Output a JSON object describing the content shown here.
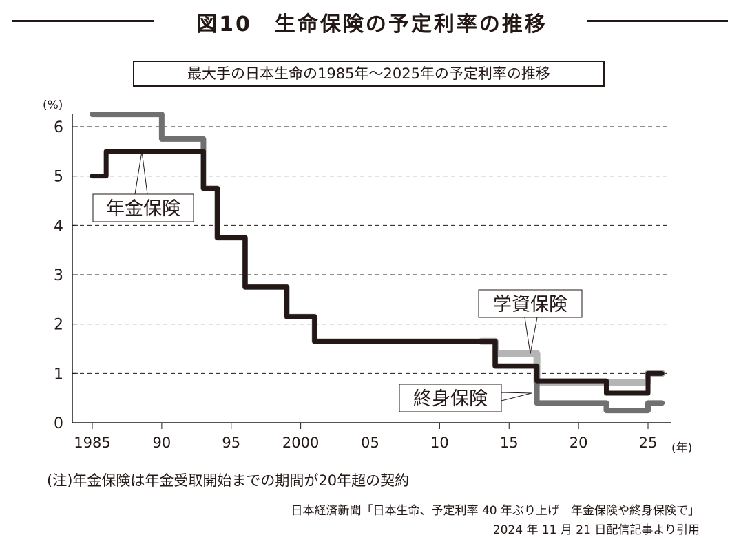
{
  "title": "図10　生命保険の予定利率の推移",
  "chart_data": {
    "type": "line",
    "subtitle": "最大手の日本生命の1985年～2025年の予定利率の推移",
    "ylabel": "(%)",
    "xlabel": "(年)",
    "ylim": [
      0,
      6.5
    ],
    "xlim": [
      1985,
      2026.5
    ],
    "yticks": [
      0,
      1,
      2,
      3,
      4,
      5,
      6
    ],
    "xticks": [
      {
        "v": 1985,
        "label": "1985"
      },
      {
        "v": 1990,
        "label": "90"
      },
      {
        "v": 1995,
        "label": "95"
      },
      {
        "v": 2000,
        "label": "2000"
      },
      {
        "v": 2005,
        "label": "05"
      },
      {
        "v": 2010,
        "label": "10"
      },
      {
        "v": 2015,
        "label": "15"
      },
      {
        "v": 2020,
        "label": "20"
      },
      {
        "v": 2025,
        "label": "25"
      }
    ],
    "grid": "horizontal dashed",
    "step": true,
    "series": [
      {
        "name": "学資保険",
        "color": "#b5b5b5",
        "points": [
          [
            2013,
            1.65
          ],
          [
            2014,
            1.65
          ],
          [
            2014,
            1.4
          ],
          [
            2017,
            1.4
          ],
          [
            2017,
            0.82
          ],
          [
            2025,
            0.82
          ],
          [
            2025,
            1.0
          ],
          [
            2026,
            1.0
          ]
        ]
      },
      {
        "name": "終身保険",
        "color": "#717071",
        "points": [
          [
            1985,
            6.25
          ],
          [
            1990,
            6.25
          ],
          [
            1990,
            5.75
          ],
          [
            1993,
            5.75
          ],
          [
            1993,
            4.75
          ],
          [
            1994,
            4.75
          ],
          [
            1994,
            3.75
          ],
          [
            1996,
            3.75
          ],
          [
            1996,
            2.75
          ],
          [
            1999,
            2.75
          ],
          [
            1999,
            2.15
          ],
          [
            2001,
            2.15
          ],
          [
            2001,
            1.65
          ],
          [
            2014,
            1.65
          ],
          [
            2014,
            1.15
          ],
          [
            2017,
            1.15
          ],
          [
            2017,
            0.4
          ],
          [
            2022,
            0.4
          ],
          [
            2022,
            0.25
          ],
          [
            2025,
            0.25
          ],
          [
            2025,
            0.4
          ],
          [
            2026,
            0.4
          ]
        ]
      },
      {
        "name": "年金保険",
        "color": "#231815",
        "points": [
          [
            1985,
            5.0
          ],
          [
            1986,
            5.0
          ],
          [
            1986,
            5.5
          ],
          [
            1993,
            5.5
          ],
          [
            1993,
            4.75
          ],
          [
            1994,
            4.75
          ],
          [
            1994,
            3.75
          ],
          [
            1996,
            3.75
          ],
          [
            1996,
            2.75
          ],
          [
            1999,
            2.75
          ],
          [
            1999,
            2.15
          ],
          [
            2001,
            2.15
          ],
          [
            2001,
            1.65
          ],
          [
            2014,
            1.65
          ],
          [
            2014,
            1.15
          ],
          [
            2017,
            1.15
          ],
          [
            2017,
            0.85
          ],
          [
            2022,
            0.85
          ],
          [
            2022,
            0.6
          ],
          [
            2025,
            0.6
          ],
          [
            2025,
            1.0
          ],
          [
            2026,
            1.0
          ]
        ]
      }
    ]
  },
  "notes": {
    "note": "(注)年金保険は年金受取開始までの期間が20年超の契約",
    "source1": "日本経済新聞「日本生命、予定利率 40 年ぶり上げ　年金保険や終身保険で」",
    "source2": "2024 年 11 月 21 日配信記事より引用"
  }
}
